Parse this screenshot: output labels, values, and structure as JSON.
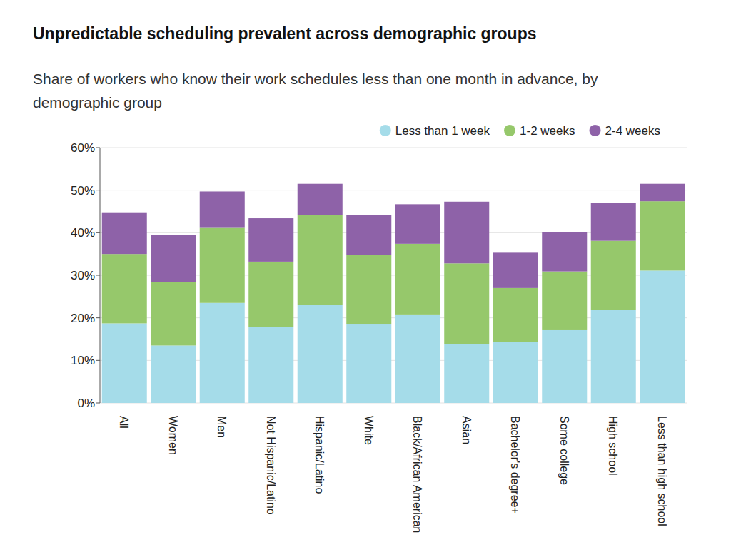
{
  "chart_data": {
    "type": "bar",
    "title": "Unpredictable scheduling prevalent across demographic groups",
    "subtitle": "Share of workers who know their work schedules less than one month in advance, by demographic group",
    "categories": [
      "All",
      "Women",
      "Men",
      "Not Hispanic/Latino",
      "Hispanic/Latino",
      "White",
      "Black/African American",
      "Asian",
      "Bachelor's degree+",
      "Some college",
      "High school",
      "Less than high school"
    ],
    "series": [
      {
        "name": "Less than 1 week",
        "color": "#a5dce9",
        "values": [
          18.7,
          13.5,
          23.5,
          17.8,
          23.0,
          18.6,
          20.8,
          13.8,
          14.4,
          17.1,
          21.8,
          31.1
        ]
      },
      {
        "name": "1-2 weeks",
        "color": "#96c86b",
        "values": [
          16.3,
          14.9,
          17.8,
          15.4,
          21.1,
          16.1,
          16.6,
          19.0,
          12.6,
          13.8,
          16.3,
          16.3
        ]
      },
      {
        "name": "2-4 weeks",
        "color": "#8e62a8",
        "values": [
          9.8,
          11.0,
          8.4,
          10.2,
          7.4,
          9.4,
          9.3,
          14.5,
          8.3,
          9.3,
          8.9,
          4.1
        ]
      }
    ],
    "stacked": true,
    "ylim": [
      0,
      60
    ],
    "yticks": [
      {
        "value": 0,
        "label": "0%"
      },
      {
        "value": 10,
        "label": "10%"
      },
      {
        "value": 20,
        "label": "20%"
      },
      {
        "value": 30,
        "label": "30%"
      },
      {
        "value": 40,
        "label": "40%"
      },
      {
        "value": 50,
        "label": "50%"
      },
      {
        "value": 60,
        "label": "60%"
      }
    ],
    "grid": true,
    "legend": "top-right"
  }
}
